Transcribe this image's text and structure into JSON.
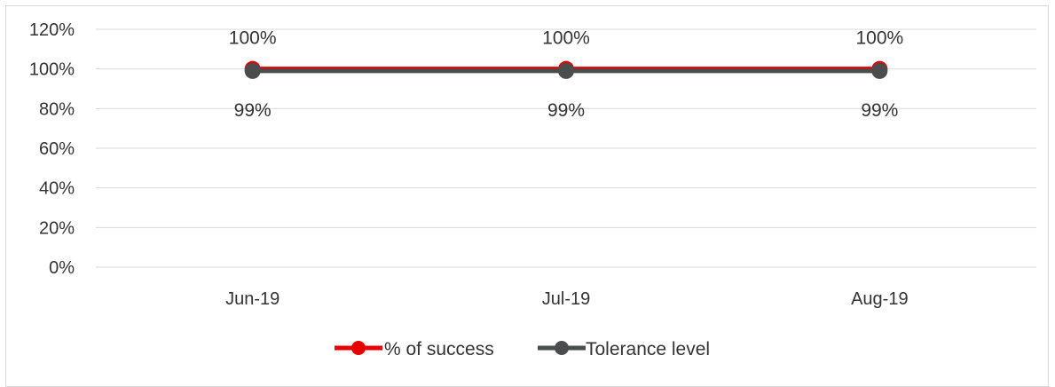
{
  "chart_data": {
    "type": "line",
    "title": "",
    "xlabel": "",
    "ylabel": "",
    "categories": [
      "Jun-19",
      "Jul-19",
      "Aug-19"
    ],
    "ylim": [
      0,
      120
    ],
    "y_tick_values": [
      0,
      20,
      40,
      60,
      80,
      100,
      120
    ],
    "y_tick_labels": [
      "0%",
      "20%",
      "40%",
      "60%",
      "80%",
      "100%",
      "120%"
    ],
    "grid": true,
    "legend_position": "bottom",
    "series": [
      {
        "name": "% of success",
        "values": [
          100,
          100,
          100
        ],
        "data_labels": [
          "100%",
          "100%",
          "100%"
        ],
        "label_position": "above",
        "color": "#e60000"
      },
      {
        "name": "Tolerance level",
        "values": [
          99,
          99,
          99
        ],
        "data_labels": [
          "99%",
          "99%",
          "99%"
        ],
        "label_position": "below",
        "color": "#4a4d4e"
      }
    ],
    "gridline_color": "#d9d9d9"
  }
}
